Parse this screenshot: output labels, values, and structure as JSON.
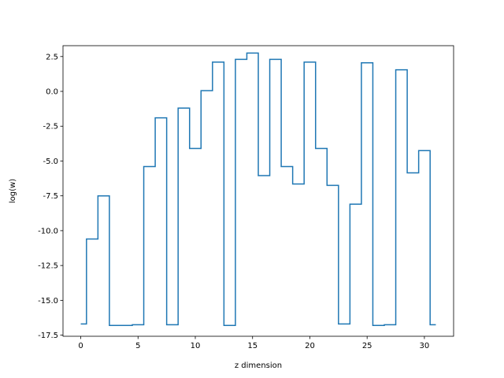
{
  "chart_data": {
    "type": "line",
    "drawstyle": "steps-mid",
    "xlabel": "z dimension",
    "ylabel": "log(w)",
    "xlim": [
      -1.55,
      32.55
    ],
    "ylim": [
      -17.58,
      3.28
    ],
    "xticks": [
      0,
      5,
      10,
      15,
      20,
      25,
      30
    ],
    "yticks": [
      2.5,
      0.0,
      -2.5,
      -5.0,
      -7.5,
      -10.0,
      -12.5,
      -15.0,
      -17.5
    ],
    "grid": false,
    "series": [
      {
        "color": "#1f77b4",
        "x": [
          0,
          1,
          2,
          3,
          4,
          5,
          6,
          7,
          8,
          9,
          10,
          11,
          12,
          13,
          14,
          15,
          16,
          17,
          18,
          19,
          20,
          21,
          22,
          23,
          24,
          25,
          26,
          27,
          28,
          29,
          30,
          31
        ],
        "y": [
          -16.7,
          -10.6,
          -7.5,
          -16.8,
          -16.8,
          -16.75,
          -5.4,
          -1.9,
          -16.75,
          -1.2,
          -4.1,
          0.05,
          2.1,
          -16.8,
          2.3,
          2.75,
          -6.05,
          2.3,
          -5.4,
          -6.65,
          2.1,
          -4.1,
          -6.75,
          -16.7,
          -8.1,
          2.05,
          -16.8,
          -16.75,
          1.55,
          -5.85,
          -4.25,
          -16.75
        ]
      }
    ]
  }
}
